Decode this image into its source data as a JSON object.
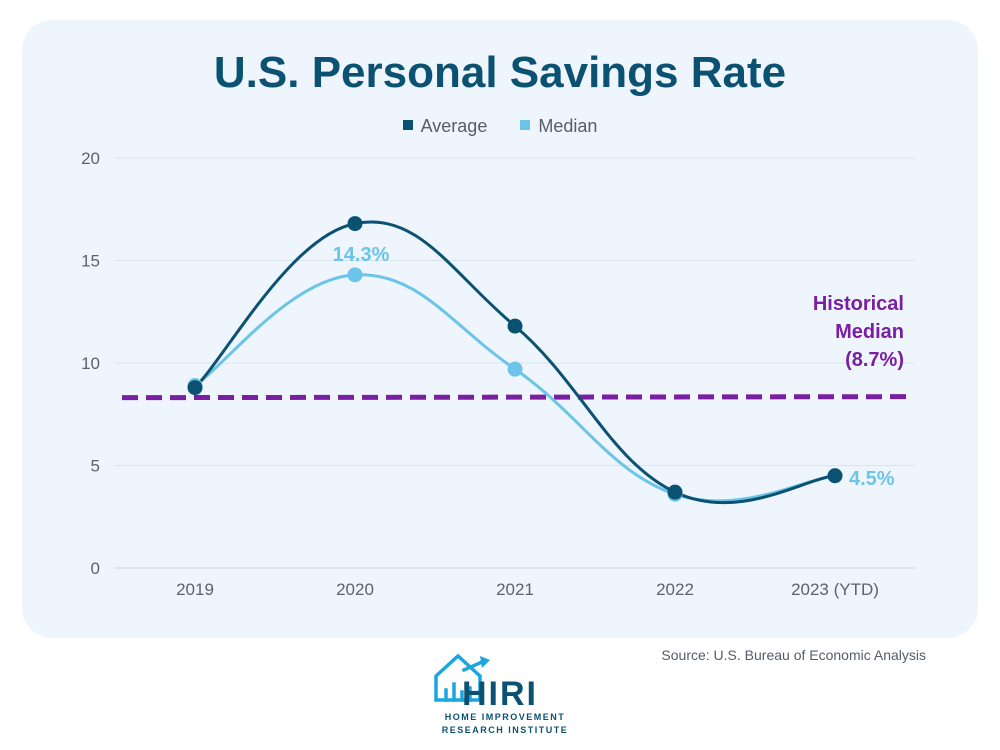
{
  "chart_data": {
    "type": "line",
    "title": "U.S. Personal Savings Rate",
    "categories": [
      "2019",
      "2020",
      "2021",
      "2022",
      "2023 (YTD)"
    ],
    "ylim": [
      0,
      20
    ],
    "yticks": [
      0,
      5,
      10,
      15,
      20
    ],
    "grid": true,
    "legend_position": "top-center",
    "series": [
      {
        "name": "Average",
        "color": "#0b5172",
        "values": [
          8.8,
          16.8,
          11.8,
          3.7,
          4.5
        ]
      },
      {
        "name": "Median",
        "color": "#6cc4e8",
        "values": [
          8.9,
          14.3,
          9.7,
          3.6,
          4.5
        ]
      }
    ],
    "reference_line": {
      "value": 8.7,
      "label_lines": [
        "Historical",
        "Median",
        "(8.7%)"
      ],
      "color": "#7a1fa2"
    },
    "annotations": [
      {
        "series": "Median",
        "index": 1,
        "text": "14.3%"
      },
      {
        "series": "Median",
        "index": 4,
        "text": "4.5%"
      }
    ]
  },
  "source": "Source: U.S. Bureau of Economic Analysis",
  "logo": {
    "name": "HIRI",
    "line1": "HOME IMPROVEMENT",
    "line2": "RESEARCH INSTITUTE",
    "color": "#0b5172",
    "accent": "#1ba6e0"
  }
}
